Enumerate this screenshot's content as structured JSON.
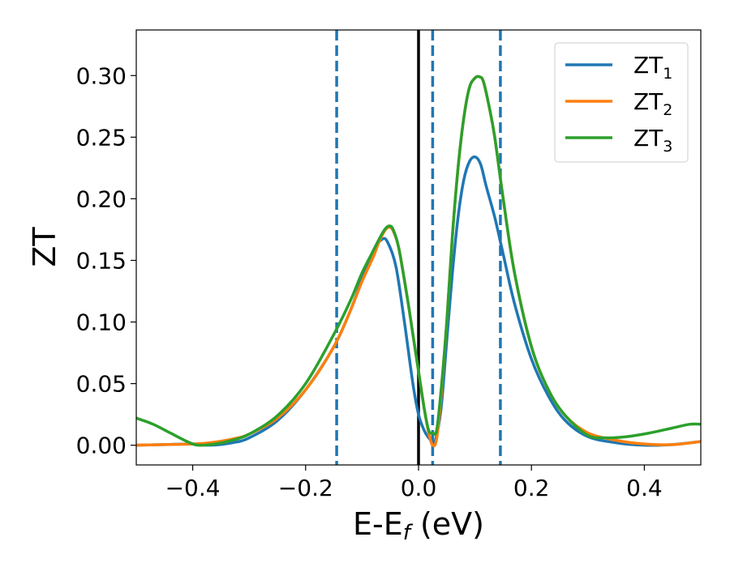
{
  "chart_data": {
    "type": "line",
    "xlabel": {
      "main": "E-E",
      "sub": "f",
      "suffix": " (eV)"
    },
    "ylabel": "ZT",
    "xlim": [
      -0.5,
      0.5
    ],
    "ylim": [
      -0.016,
      0.337
    ],
    "xticks": [
      -0.4,
      -0.2,
      0.0,
      0.2,
      0.4
    ],
    "xtick_labels": [
      "−0.4",
      "−0.2",
      "0.0",
      "0.2",
      "0.4"
    ],
    "yticks": [
      0.0,
      0.05,
      0.1,
      0.15,
      0.2,
      0.25,
      0.3
    ],
    "ytick_labels": [
      "0.00",
      "0.05",
      "0.10",
      "0.15",
      "0.20",
      "0.25",
      "0.30"
    ],
    "grid": false,
    "legend_position": "top-right",
    "vertical_lines": [
      {
        "x": 0.0,
        "style": "solid",
        "color": "#000000"
      },
      {
        "x": -0.145,
        "style": "dashed",
        "color": "#1f77b4"
      },
      {
        "x": 0.025,
        "style": "dashed",
        "color": "#1f77b4"
      },
      {
        "x": 0.145,
        "style": "dashed",
        "color": "#1f77b4"
      }
    ],
    "series": [
      {
        "name": "ZT",
        "sub": "1",
        "color": "#1f77b4",
        "points": [
          [
            -0.5,
            0.0
          ],
          [
            -0.45,
            0.0005
          ],
          [
            -0.4,
            0.001
          ],
          [
            -0.37,
            0.0
          ],
          [
            -0.33,
            0.002
          ],
          [
            -0.3,
            0.006
          ],
          [
            -0.25,
            0.02
          ],
          [
            -0.2,
            0.045
          ],
          [
            -0.15,
            0.08
          ],
          [
            -0.12,
            0.11
          ],
          [
            -0.1,
            0.135
          ],
          [
            -0.08,
            0.158
          ],
          [
            -0.065,
            0.167
          ],
          [
            -0.055,
            0.165
          ],
          [
            -0.04,
            0.145
          ],
          [
            -0.025,
            0.1
          ],
          [
            -0.01,
            0.05
          ],
          [
            0.0,
            0.025
          ],
          [
            0.01,
            0.012
          ],
          [
            0.018,
            0.006
          ],
          [
            0.025,
            0.003
          ],
          [
            0.03,
            0.004
          ],
          [
            0.04,
            0.03
          ],
          [
            0.05,
            0.085
          ],
          [
            0.06,
            0.14
          ],
          [
            0.07,
            0.185
          ],
          [
            0.08,
            0.215
          ],
          [
            0.09,
            0.23
          ],
          [
            0.1,
            0.234
          ],
          [
            0.11,
            0.228
          ],
          [
            0.12,
            0.21
          ],
          [
            0.135,
            0.185
          ],
          [
            0.15,
            0.155
          ],
          [
            0.17,
            0.115
          ],
          [
            0.2,
            0.07
          ],
          [
            0.23,
            0.04
          ],
          [
            0.26,
            0.02
          ],
          [
            0.3,
            0.007
          ],
          [
            0.35,
            0.002
          ],
          [
            0.4,
            0.0
          ],
          [
            0.45,
            0.0005
          ],
          [
            0.5,
            0.003
          ]
        ]
      },
      {
        "name": "ZT",
        "sub": "2",
        "color": "#ff7f0e",
        "points": [
          [
            -0.5,
            0.0
          ],
          [
            -0.45,
            0.0005
          ],
          [
            -0.4,
            0.001
          ],
          [
            -0.37,
            0.002
          ],
          [
            -0.33,
            0.005
          ],
          [
            -0.3,
            0.009
          ],
          [
            -0.25,
            0.022
          ],
          [
            -0.2,
            0.045
          ],
          [
            -0.15,
            0.08
          ],
          [
            -0.12,
            0.11
          ],
          [
            -0.1,
            0.133
          ],
          [
            -0.08,
            0.153
          ],
          [
            -0.07,
            0.165
          ],
          [
            -0.06,
            0.174
          ],
          [
            -0.052,
            0.177
          ],
          [
            -0.045,
            0.174
          ],
          [
            -0.035,
            0.16
          ],
          [
            -0.02,
            0.12
          ],
          [
            -0.01,
            0.09
          ],
          [
            0.0,
            0.06
          ],
          [
            0.01,
            0.03
          ],
          [
            0.018,
            0.01
          ],
          [
            0.025,
            0.0
          ],
          [
            0.032,
            0.005
          ],
          [
            0.04,
            0.04
          ],
          [
            0.05,
            0.1
          ],
          [
            0.06,
            0.17
          ],
          [
            0.07,
            0.225
          ],
          [
            0.08,
            0.265
          ],
          [
            0.09,
            0.29
          ],
          [
            0.1,
            0.298
          ],
          [
            0.108,
            0.299
          ],
          [
            0.115,
            0.295
          ],
          [
            0.125,
            0.275
          ],
          [
            0.135,
            0.25
          ],
          [
            0.15,
            0.2
          ],
          [
            0.17,
            0.14
          ],
          [
            0.2,
            0.08
          ],
          [
            0.23,
            0.045
          ],
          [
            0.26,
            0.024
          ],
          [
            0.3,
            0.01
          ],
          [
            0.35,
            0.004
          ],
          [
            0.4,
            0.001
          ],
          [
            0.45,
            0.0005
          ],
          [
            0.5,
            0.003
          ]
        ]
      },
      {
        "name": "ZT",
        "sub": "3",
        "color": "#2ca02c",
        "points": [
          [
            -0.5,
            0.022
          ],
          [
            -0.47,
            0.017
          ],
          [
            -0.44,
            0.01
          ],
          [
            -0.41,
            0.003
          ],
          [
            -0.39,
            0.0
          ],
          [
            -0.36,
            0.001
          ],
          [
            -0.33,
            0.004
          ],
          [
            -0.3,
            0.009
          ],
          [
            -0.25,
            0.024
          ],
          [
            -0.2,
            0.05
          ],
          [
            -0.15,
            0.09
          ],
          [
            -0.12,
            0.118
          ],
          [
            -0.1,
            0.14
          ],
          [
            -0.08,
            0.158
          ],
          [
            -0.07,
            0.167
          ],
          [
            -0.06,
            0.175
          ],
          [
            -0.052,
            0.178
          ],
          [
            -0.045,
            0.175
          ],
          [
            -0.035,
            0.16
          ],
          [
            -0.02,
            0.12
          ],
          [
            -0.01,
            0.09
          ],
          [
            0.0,
            0.06
          ],
          [
            0.01,
            0.03
          ],
          [
            0.018,
            0.012
          ],
          [
            0.025,
            0.01
          ],
          [
            0.032,
            0.012
          ],
          [
            0.04,
            0.045
          ],
          [
            0.05,
            0.1
          ],
          [
            0.06,
            0.17
          ],
          [
            0.07,
            0.225
          ],
          [
            0.08,
            0.265
          ],
          [
            0.09,
            0.29
          ],
          [
            0.1,
            0.298
          ],
          [
            0.108,
            0.299
          ],
          [
            0.115,
            0.295
          ],
          [
            0.125,
            0.275
          ],
          [
            0.135,
            0.25
          ],
          [
            0.15,
            0.2
          ],
          [
            0.17,
            0.14
          ],
          [
            0.2,
            0.08
          ],
          [
            0.23,
            0.045
          ],
          [
            0.26,
            0.024
          ],
          [
            0.3,
            0.008
          ],
          [
            0.33,
            0.006
          ],
          [
            0.37,
            0.007
          ],
          [
            0.41,
            0.01
          ],
          [
            0.45,
            0.014
          ],
          [
            0.48,
            0.017
          ],
          [
            0.5,
            0.017
          ]
        ]
      }
    ]
  }
}
